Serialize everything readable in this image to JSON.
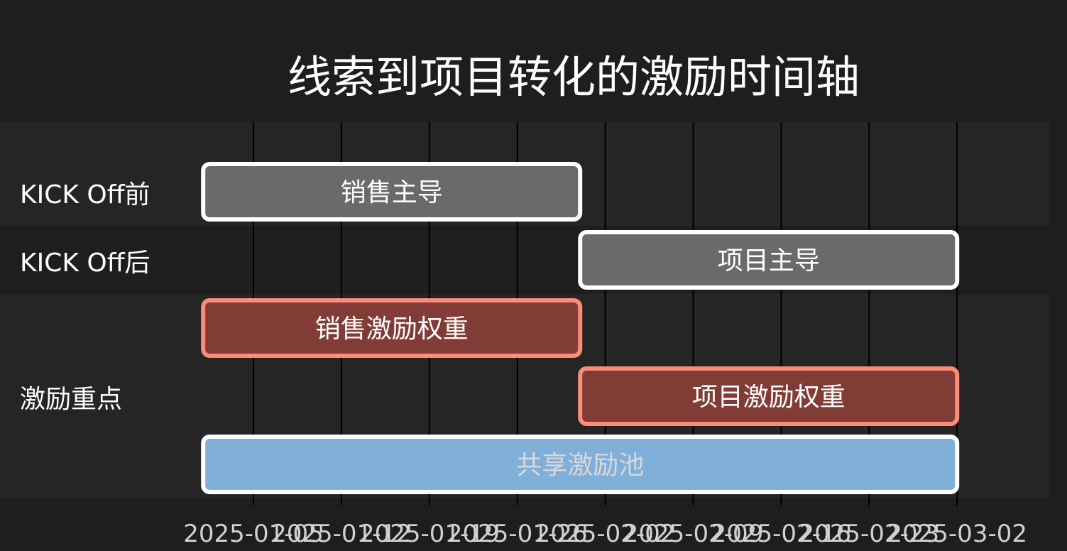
{
  "title": "线索到项目转化的激励时间轴",
  "colors": {
    "background": "#1e1e1e",
    "band": "#252525",
    "grid": "#000000",
    "gray_fill": "#6a6a6a",
    "gray_border": "#ffffff",
    "red_fill": "#813c35",
    "red_border": "#fa8c78",
    "blue_fill": "#80afd9",
    "blue_border": "#ffffff",
    "label_text": "#ffffff",
    "blue_label_text": "#d8d8d8"
  },
  "chart_data": {
    "type": "timeline",
    "title": "线索到项目转化的激励时间轴",
    "x_ticks": [
      "2025-01-05",
      "2025-01-12",
      "2025-01-19",
      "2025-01-26",
      "2025-02-02",
      "2025-02-09",
      "2025-02-16",
      "2025-02-23",
      "2025-03-02"
    ],
    "groups": [
      "KICK Off前",
      "KICK Off后",
      "激励重点"
    ],
    "tasks": [
      {
        "label": "销售主导",
        "group": "KICK Off前",
        "start": "2025-01-01",
        "end": "2025-01-31",
        "style": "gray"
      },
      {
        "label": "项目主导",
        "group": "KICK Off后",
        "start": "2025-01-31",
        "end": "2025-03-02",
        "style": "gray"
      },
      {
        "label": "销售激励权重",
        "group": "激励重点",
        "start": "2025-01-01",
        "end": "2025-01-31",
        "style": "red"
      },
      {
        "label": "项目激励权重",
        "group": "激励重点",
        "start": "2025-01-31",
        "end": "2025-03-02",
        "style": "red"
      },
      {
        "label": "共享激励池",
        "group": "激励重点",
        "start": "2025-01-01",
        "end": "2025-03-02",
        "style": "blue"
      }
    ]
  }
}
